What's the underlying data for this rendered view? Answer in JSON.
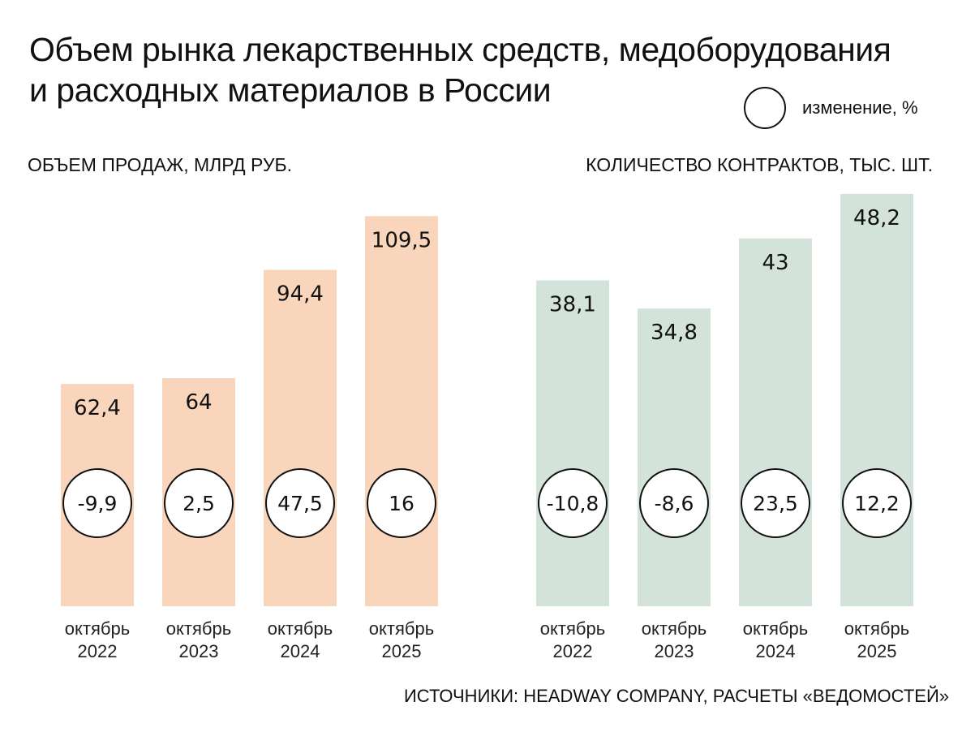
{
  "title_line1": "Объем рынка лекарственных средств, медоборудования",
  "title_line2": "и расходных материалов в России",
  "legend_label": "изменение, %",
  "source": "ИСТОЧНИКИ: HEADWAY COMPANY, РАСЧЕТЫ «ВЕДОМОСТЕЙ»",
  "chart_data": [
    {
      "type": "bar",
      "title": "ОБЪЕМ ПРОДАЖ, МЛРД РУБ.",
      "categories": [
        "октябрь 2022",
        "октябрь 2023",
        "октябрь 2024",
        "октябрь 2025"
      ],
      "values": [
        62.4,
        64,
        94.4,
        109.5
      ],
      "value_labels": [
        "62,4",
        "64",
        "94,4",
        "109,5"
      ],
      "change_pct": [
        "-9,9",
        "2,5",
        "47,5",
        "16"
      ],
      "color": "#f8d5bb"
    },
    {
      "type": "bar",
      "title": "КОЛИЧЕСТВО КОНТРАКТОВ, ТЫС. ШТ.",
      "categories": [
        "октябрь 2022",
        "октябрь 2023",
        "октябрь 2024",
        "октябрь 2025"
      ],
      "values": [
        38.1,
        34.8,
        43,
        48.2
      ],
      "value_labels": [
        "38,1",
        "34,8",
        "43",
        "48,2"
      ],
      "change_pct": [
        "-10,8",
        "-8,6",
        "23,5",
        "12,2"
      ],
      "color": "#d3e3da"
    }
  ]
}
